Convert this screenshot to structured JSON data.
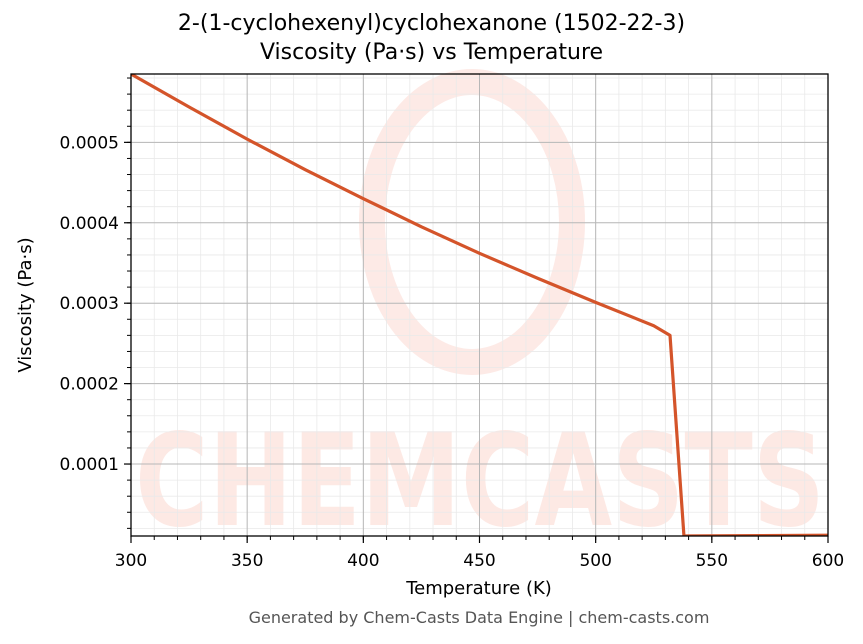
{
  "chart_data": {
    "type": "line",
    "title_line1": "2-(1-cyclohexenyl)cyclohexanone (1502-22-3)",
    "title_line2": "Viscosity (Pa·s) vs Temperature",
    "xlabel": "Temperature (K)",
    "ylabel": "Viscosity (Pa·s)",
    "xlim": [
      300,
      600
    ],
    "ylim": [
      1.05e-05,
      0.000585
    ],
    "x_ticks": [
      300,
      350,
      400,
      450,
      500,
      550,
      600
    ],
    "x_tick_labels": [
      "300",
      "350",
      "400",
      "450",
      "500",
      "550",
      "600"
    ],
    "y_ticks": [
      0.0001,
      0.0002,
      0.0003,
      0.0004,
      0.0005
    ],
    "y_tick_labels": [
      "0.0001",
      "0.0002",
      "0.0003",
      "0.0004",
      "0.0005"
    ],
    "grid": true,
    "series_color": "#d4542a",
    "series": [
      {
        "x": [
          300,
          325,
          350,
          375,
          400,
          425,
          450,
          475,
          500,
          525,
          532,
          538,
          560,
          600
        ],
        "y": [
          0.000585,
          0.000544,
          0.000504,
          0.000466,
          0.00043,
          0.000395,
          0.000362,
          0.000331,
          0.000301,
          0.000272,
          0.00026,
          1.05e-05,
          1.08e-05,
          1.15e-05
        ]
      }
    ],
    "watermark": "CHEMCASTS",
    "footer": "Generated by Chem-Casts Data Engine | chem-casts.com"
  }
}
